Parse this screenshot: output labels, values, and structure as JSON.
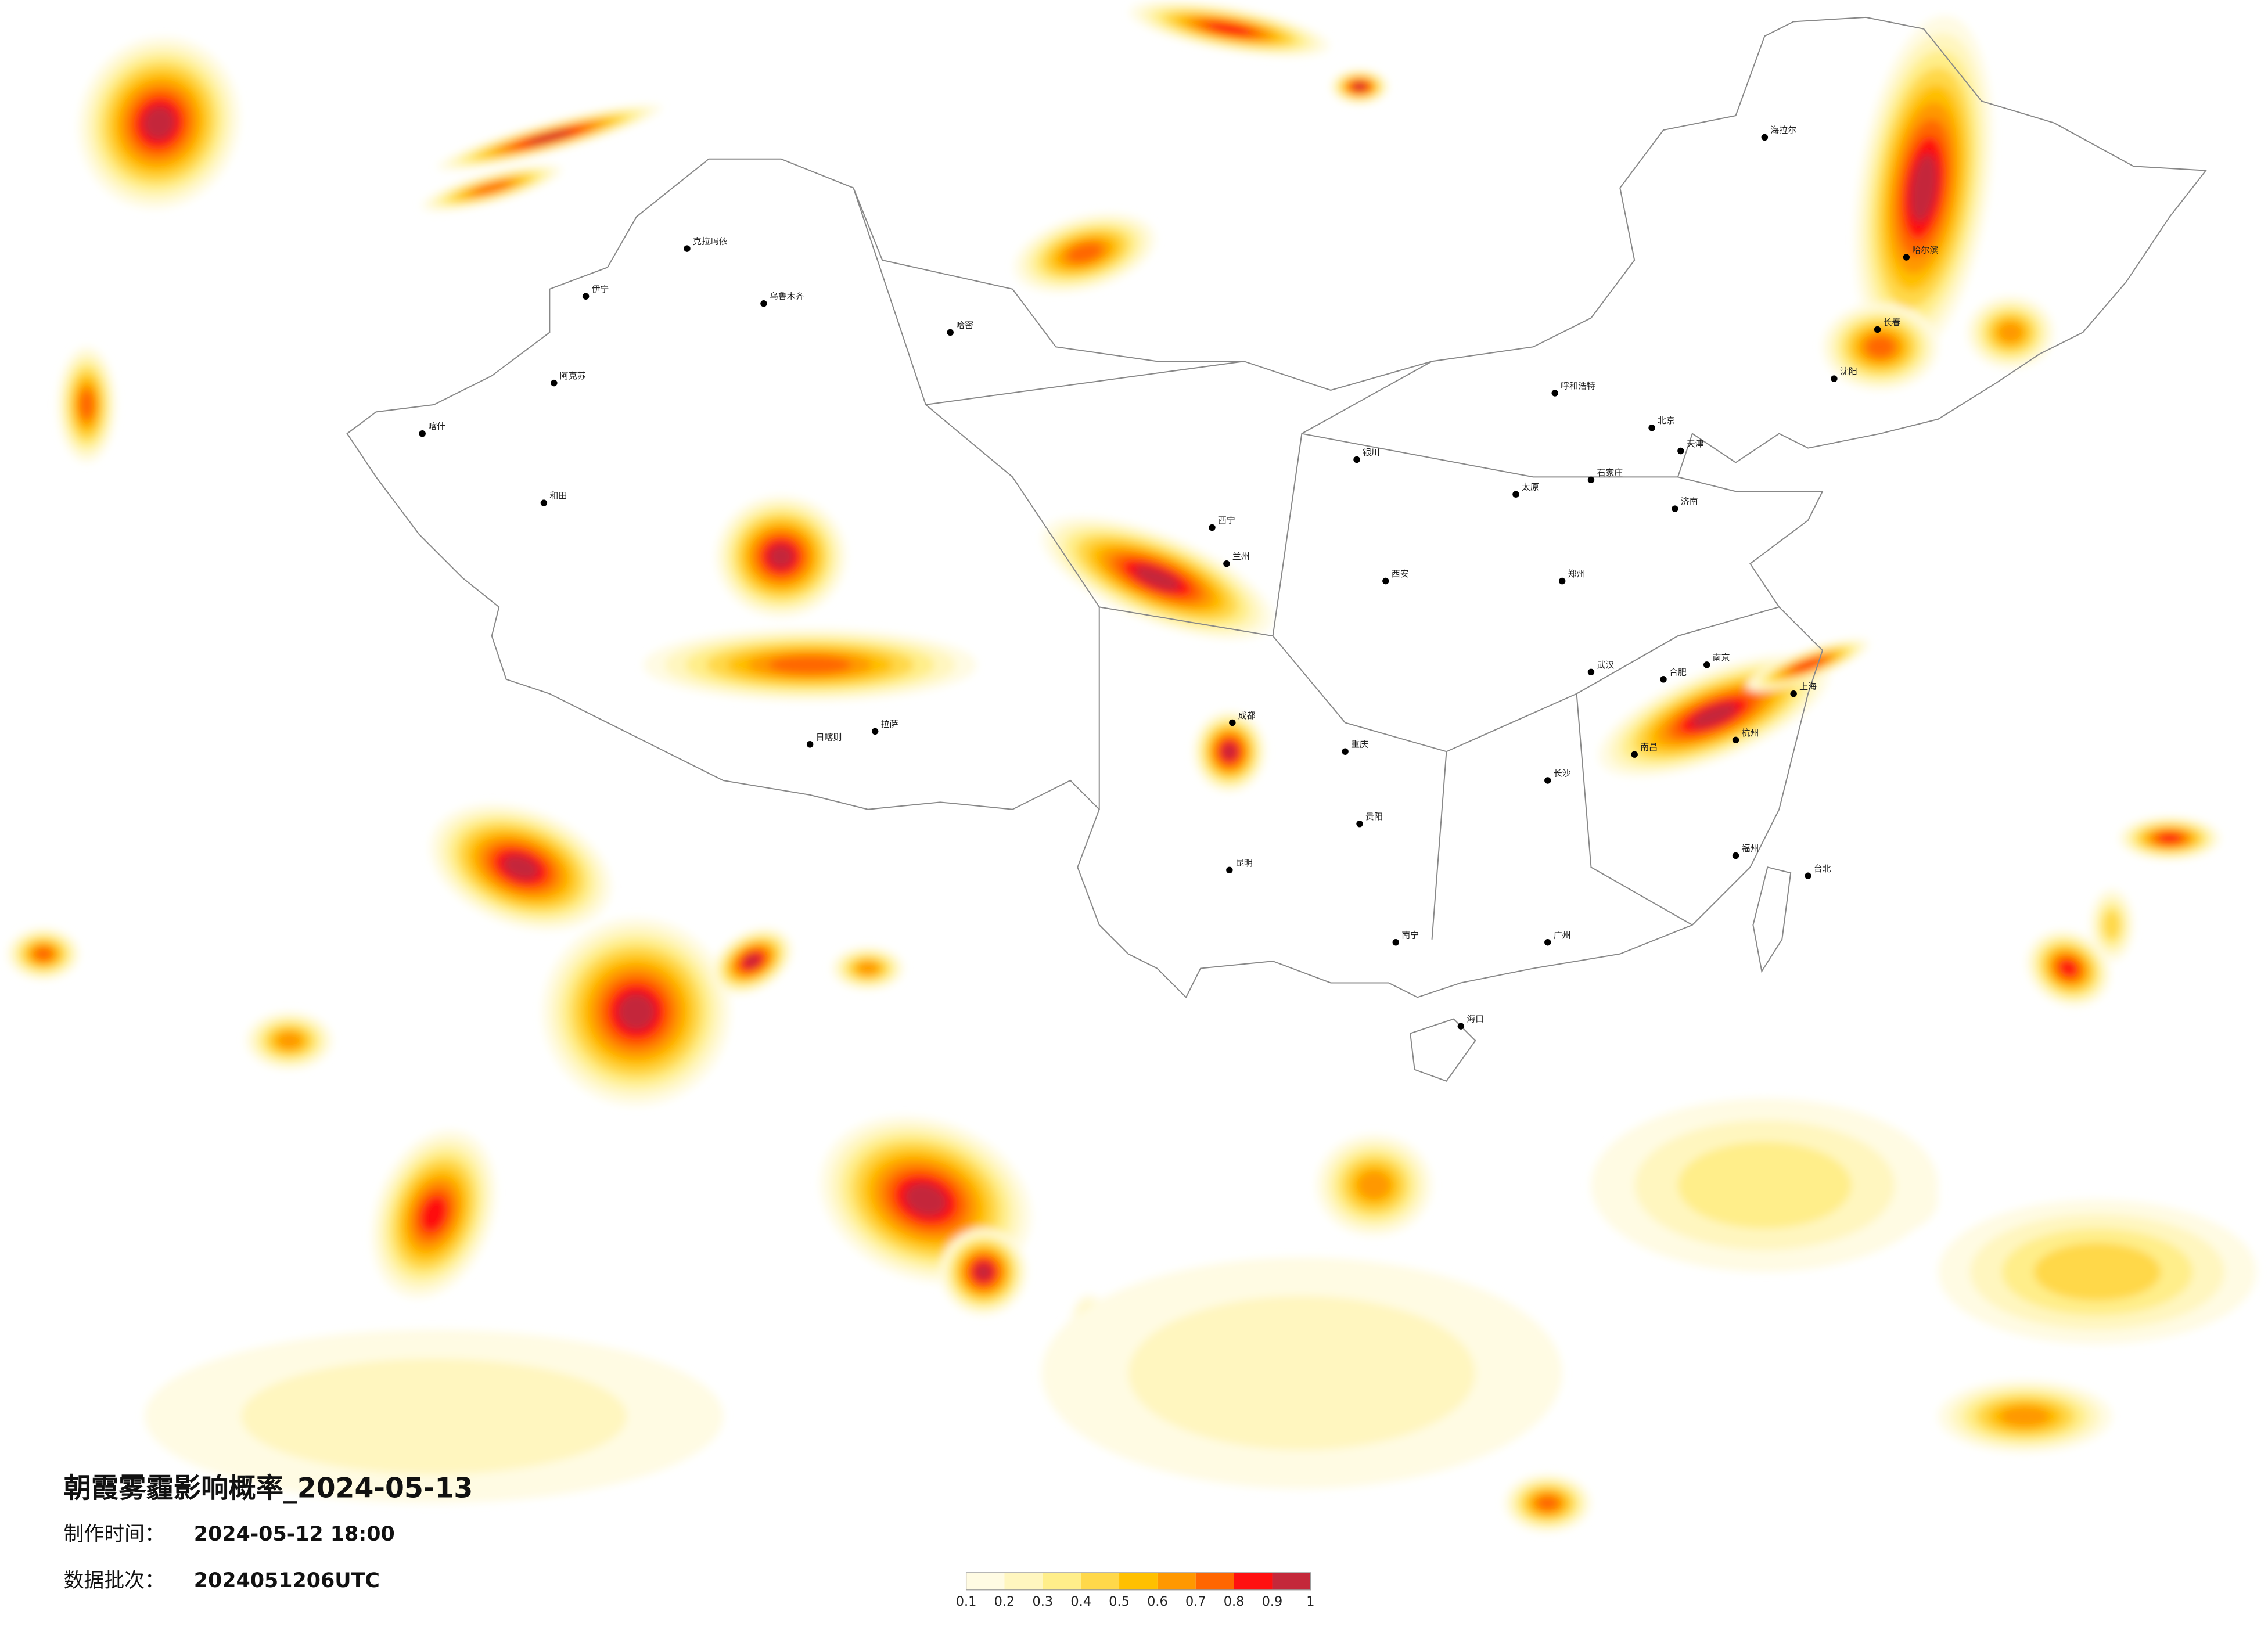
{
  "title": "朝霞雾霾影响概率_2024-05-13",
  "info": [
    {
      "label": "制作时间：",
      "value": "2024-05-12 18:00"
    },
    {
      "label": "数据批次：",
      "value": "2024051206UTC"
    }
  ],
  "legend": {
    "ticks": [
      0.1,
      0.2,
      0.3,
      0.4,
      0.5,
      0.6,
      0.7,
      0.8,
      0.9,
      1
    ],
    "colors": [
      "#fffbe3",
      "#fff6bf",
      "#ffee8a",
      "#ffd84a",
      "#ffc000",
      "#ff9800",
      "#ff6600",
      "#ff1010",
      "#c4283a"
    ]
  },
  "cities": [
    "海拉尔",
    "克拉玛依",
    "伊宁",
    "乌鲁木齐",
    "哈密",
    "阿克苏",
    "喀什",
    "和田",
    "拉萨",
    "日喀则",
    "西宁",
    "兰州",
    "银川",
    "呼和浩特",
    "哈尔滨",
    "长春",
    "沈阳",
    "北京",
    "天津",
    "石家庄",
    "太原",
    "济南",
    "郑州",
    "西安",
    "成都",
    "重庆",
    "武汉",
    "合肥",
    "南京",
    "上海",
    "杭州",
    "南昌",
    "长沙",
    "贵阳",
    "昆明",
    "南宁",
    "广州",
    "福州",
    "台北",
    "海口"
  ]
}
